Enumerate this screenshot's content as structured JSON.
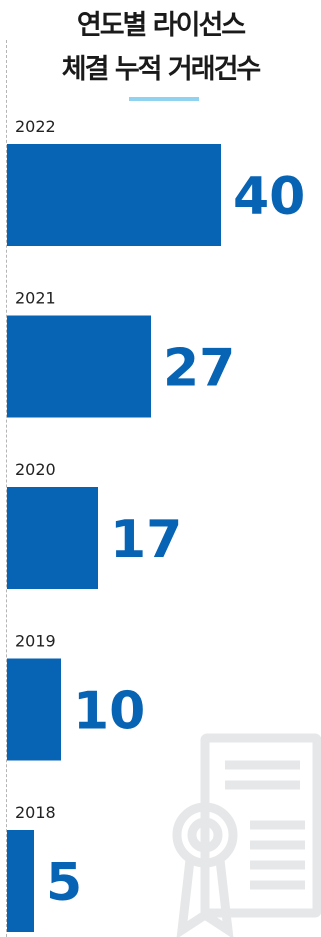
{
  "chart_data": {
    "type": "bar",
    "orientation": "horizontal",
    "title": "연도별 라이선스 체결 누적 거래건수",
    "title_lines": [
      "연도별 라이선스",
      "체결 누적 거래건수"
    ],
    "categories": [
      "2022",
      "2021",
      "2020",
      "2019",
      "2018"
    ],
    "values": [
      40,
      27,
      17,
      10,
      5
    ],
    "value_labels": [
      "40",
      "27",
      "17",
      "10",
      "5"
    ],
    "xlabel": "",
    "ylabel": "",
    "xlim": [
      0,
      40
    ],
    "grid": false,
    "legend": "none",
    "bar_color": "#0763b3",
    "value_color": "#0763b3",
    "underline_color": "#8fd3f0"
  },
  "decoration": {
    "watermark_icon": "certificate-icon"
  }
}
